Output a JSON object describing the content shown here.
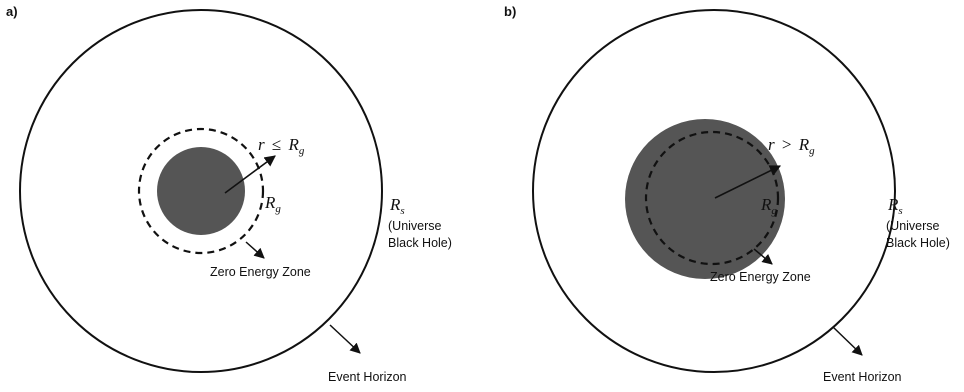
{
  "panels": [
    {
      "label": "a)",
      "radius_label": {
        "var": "r",
        "op": "≤",
        "sym": "R",
        "sub": "g"
      },
      "inner_label": {
        "sym": "R",
        "sub": "g"
      },
      "outer_label": {
        "sym": "R",
        "sub": "s"
      },
      "universe_lines": [
        "(Universe",
        "Black Hole)"
      ],
      "zero_energy_label": "Zero Energy Zone",
      "event_horizon_label": "Event Horizon"
    },
    {
      "label": "b)",
      "radius_label": {
        "var": "r",
        "op": ">",
        "sym": "R",
        "sub": "g"
      },
      "inner_label": {
        "sym": "R",
        "sub": "g"
      },
      "outer_label": {
        "sym": "R",
        "sub": "s"
      },
      "universe_lines": [
        "(Universe",
        "Black Hole)"
      ],
      "zero_energy_label": "Zero Energy Zone",
      "event_horizon_label": "Event Horizon"
    }
  ],
  "colors": {
    "mass_fill": "#555555",
    "stroke": "#111111"
  }
}
